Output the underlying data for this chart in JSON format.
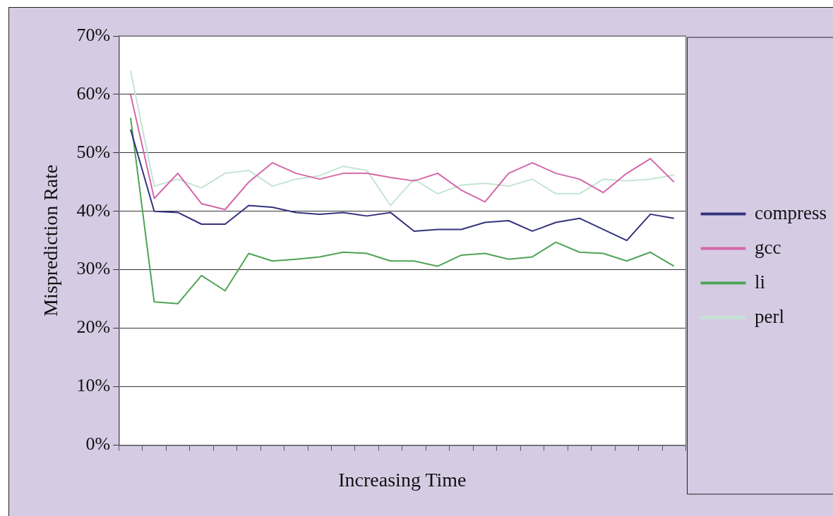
{
  "chart_data": {
    "type": "line",
    "xlabel": "Increasing Time",
    "ylabel": "Misprediction Rate",
    "categories": [
      null,
      null,
      null,
      null,
      null,
      null,
      null,
      null,
      null,
      null,
      null,
      null,
      null,
      null,
      null,
      null,
      null,
      null,
      null,
      null,
      null,
      null,
      null,
      null
    ],
    "series": [
      {
        "name": "compress",
        "color": "#35327e",
        "values": [
          54,
          40,
          39.8,
          37.8,
          37.8,
          41,
          40.7,
          39.8,
          39.5,
          39.8,
          39.2,
          39.8,
          36.6,
          36.9,
          36.9,
          38.1,
          38.4,
          36.6,
          38.1,
          38.8,
          36.9,
          35,
          39.5,
          38.8
        ]
      },
      {
        "name": "gcc",
        "color": "#d467a8",
        "values": [
          60,
          42.2,
          46.5,
          41.3,
          40.3,
          45,
          48.3,
          46.5,
          45.5,
          46.5,
          46.5,
          45.8,
          45.2,
          46.5,
          43.6,
          41.6,
          46.5,
          48.3,
          46.5,
          45.5,
          43.2,
          46.5,
          49,
          45
        ]
      },
      {
        "name": "li",
        "color": "#4ea456",
        "values": [
          56,
          24.5,
          24.2,
          29,
          26.4,
          32.8,
          31.5,
          31.8,
          32.2,
          33,
          32.8,
          31.5,
          31.5,
          30.6,
          32.5,
          32.8,
          31.8,
          32.2,
          34.7,
          33,
          32.8,
          31.5,
          33,
          30.6
        ]
      },
      {
        "name": "perl",
        "color": "#c3e5d2",
        "values": [
          64,
          44.3,
          45.5,
          44,
          46.5,
          47,
          44.3,
          45.5,
          46.1,
          47.7,
          47,
          41,
          45.5,
          43,
          44.5,
          44.8,
          44.3,
          45.5,
          43,
          43,
          45.5,
          45.2,
          45.5,
          46.2
        ]
      }
    ],
    "ylim": [
      0,
      70
    ],
    "yticks": [
      {
        "value": 0,
        "label": "0%"
      },
      {
        "value": 10,
        "label": "10%"
      },
      {
        "value": 20,
        "label": "20%"
      },
      {
        "value": 30,
        "label": "30%"
      },
      {
        "value": 40,
        "label": "40%"
      },
      {
        "value": 50,
        "label": "50%"
      },
      {
        "value": 60,
        "label": "60%"
      },
      {
        "value": 70,
        "label": "70%"
      }
    ],
    "grid": "y",
    "legend": "right",
    "marker": "none",
    "line_style": "solid",
    "tick_labels": "y"
  }
}
